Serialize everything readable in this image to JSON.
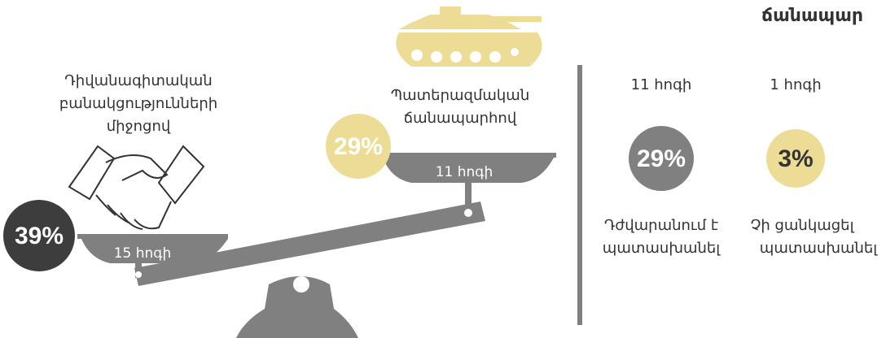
{
  "header": {
    "title": "ճանապար"
  },
  "options": [
    {
      "label": [
        "Դիվանագիտական",
        "բանակցությունների",
        "միջոցով"
      ],
      "percent": "39%",
      "count": "15 հոգի"
    },
    {
      "label": [
        "Պատերազմական",
        "ճանապարհով"
      ],
      "percent": "29%",
      "count": "11 հոգի"
    }
  ],
  "others": [
    {
      "count": "11 հոգի",
      "percent": "29%",
      "label": [
        "Դժվարանում է",
        "պատասխանել"
      ]
    },
    {
      "count": "1 հոգի",
      "percent": "3%",
      "label": [
        "Չի ցանկացել",
        "պատասխանել"
      ]
    }
  ]
}
